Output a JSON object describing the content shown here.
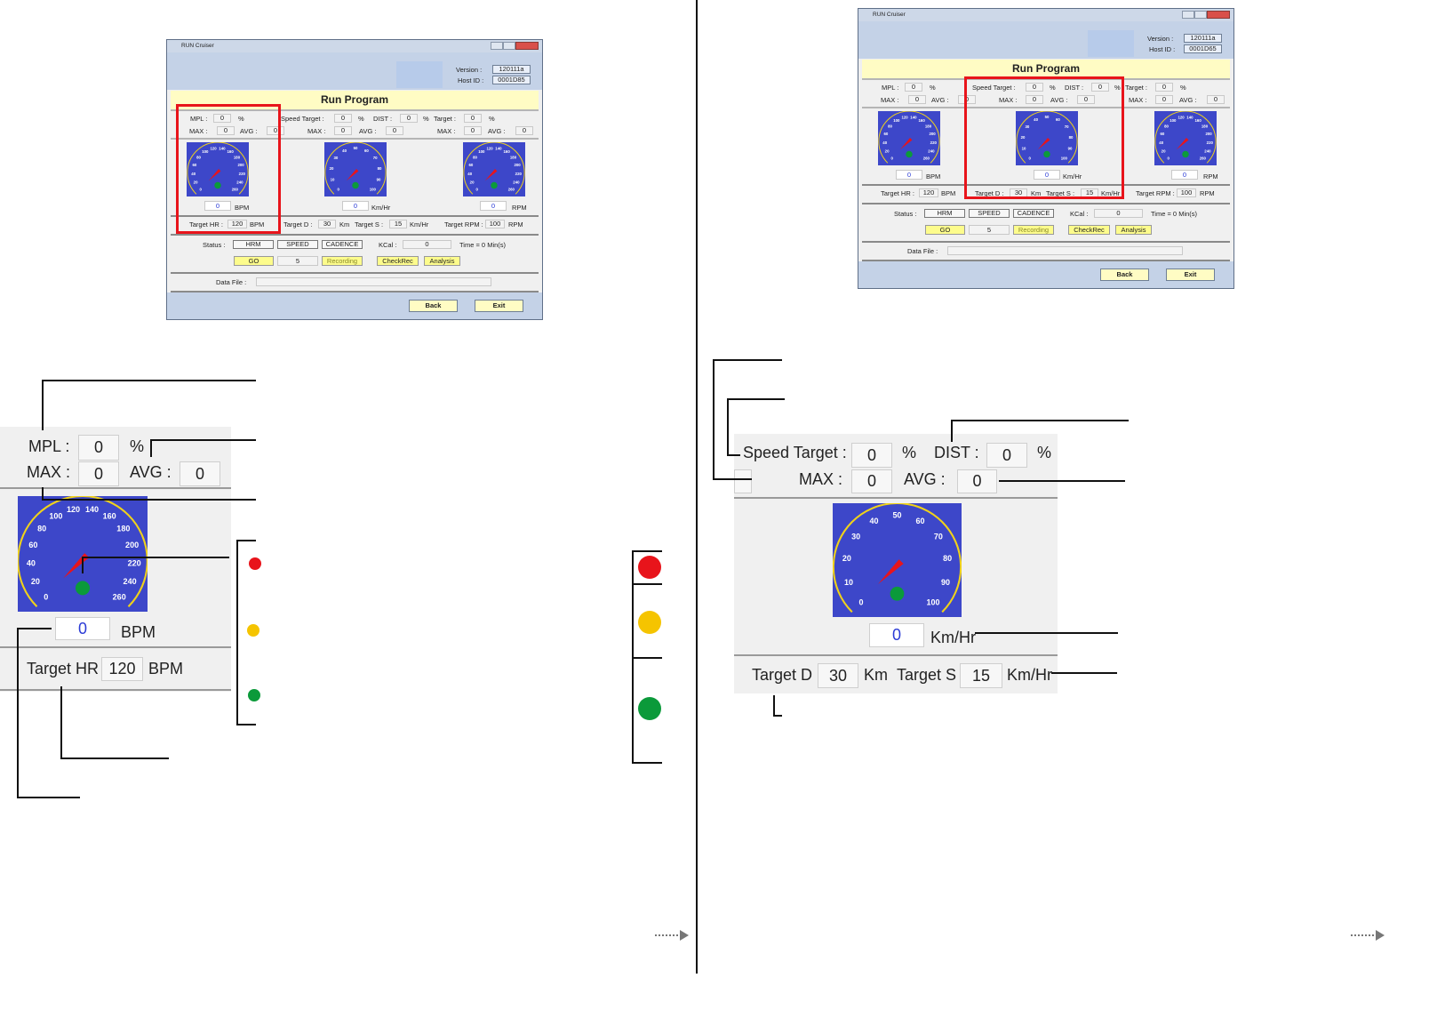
{
  "window": {
    "title": "RUN Cruiser",
    "version_label": "Version :",
    "version": "120111a",
    "host_label": "Host ID :",
    "host_ids": [
      "0001D85",
      "0001D65"
    ],
    "heading": "Run Program",
    "mpl_label": "MPL :",
    "speed_target_label": "Speed Target :",
    "dist_label": "DIST :",
    "target_label": "Target :",
    "max_label": "MAX :",
    "avg_label": "AVG :",
    "percent": "%",
    "zero": "0",
    "hr_unit": "BPM",
    "speed_unit": "Km/Hr",
    "rpm_unit": "RPM",
    "target_hr_label": "Target HR :",
    "target_hr": "120",
    "target_d_label": "Target D :",
    "target_d": "30",
    "km": "Km",
    "target_s_label": "Target S :",
    "target_s": "15",
    "target_rpm_label": "Target RPM :",
    "target_rpm": "100",
    "status_label": "Status :",
    "status_buttons": [
      "HRM",
      "SPEED",
      "CADENCE"
    ],
    "kcal_label": "KCal :",
    "time": "Time = 0 Min(s)",
    "go": "GO",
    "count": "5",
    "recording": "Recording",
    "checkrec": "CheckRec",
    "analysis": "Analysis",
    "data_file_label": "Data File :",
    "back": "Back",
    "exit": "Exit",
    "hr_dial": [
      "0",
      "20",
      "40",
      "60",
      "80",
      "100",
      "120",
      "140",
      "160",
      "180",
      "200",
      "220",
      "240",
      "260"
    ],
    "speed_dial": [
      "0",
      "10",
      "20",
      "30",
      "40",
      "50",
      "60",
      "70",
      "80",
      "90",
      "100"
    ]
  }
}
